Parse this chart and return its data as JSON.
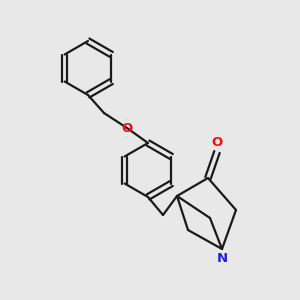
{
  "bg_color": "#e8e8e8",
  "bond_color": "#1a1a1a",
  "O_color": "#ee1111",
  "N_color": "#2222dd",
  "lw": 1.6,
  "dbo": 0.0095,
  "figsize": [
    3.0,
    3.0
  ],
  "dpi": 100,
  "fs": 9.5,
  "xlim": [
    0,
    300
  ],
  "ylim": [
    0,
    300
  ]
}
